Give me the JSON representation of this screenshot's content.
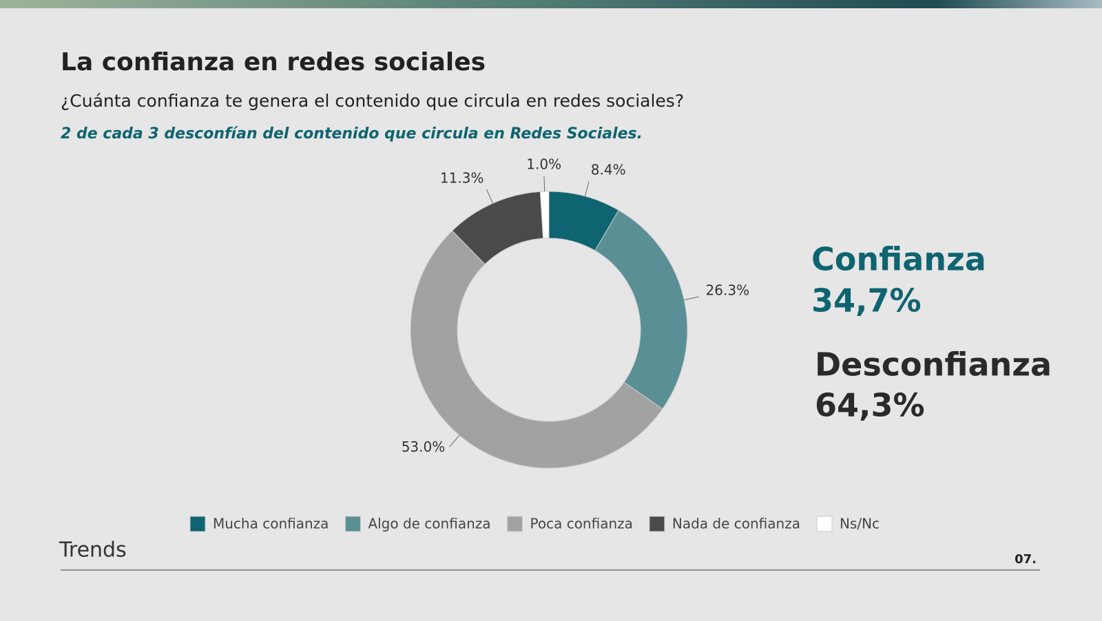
{
  "header": {
    "title": "La confianza en redes sociales",
    "subtitle": "¿Cuánta confianza te genera el contenido que circula en redes sociales?",
    "highlight": "2 de cada 3 desconfían del contenido que circula en Redes Sociales."
  },
  "chart_data": {
    "type": "donut",
    "categories": [
      "Mucha confianza",
      "Algo de confianza",
      "Poca confianza",
      "Nada de confianza",
      "Ns/Nc"
    ],
    "values": [
      8.4,
      26.3,
      53,
      11.3,
      1
    ],
    "value_labels": [
      "8.4%",
      "26.3%",
      "53.0%",
      "11.3%",
      "1.0%"
    ],
    "colors": [
      "#0e6470",
      "#5a8f95",
      "#a2a2a2",
      "#4a4a4a",
      "#ffffff"
    ]
  },
  "summary": [
    {
      "label": "Confianza",
      "value": "34,7%"
    },
    {
      "label": "Desconfianza",
      "value": "64,3%"
    }
  ],
  "footer": {
    "brand": "Trends",
    "page": "07."
  }
}
